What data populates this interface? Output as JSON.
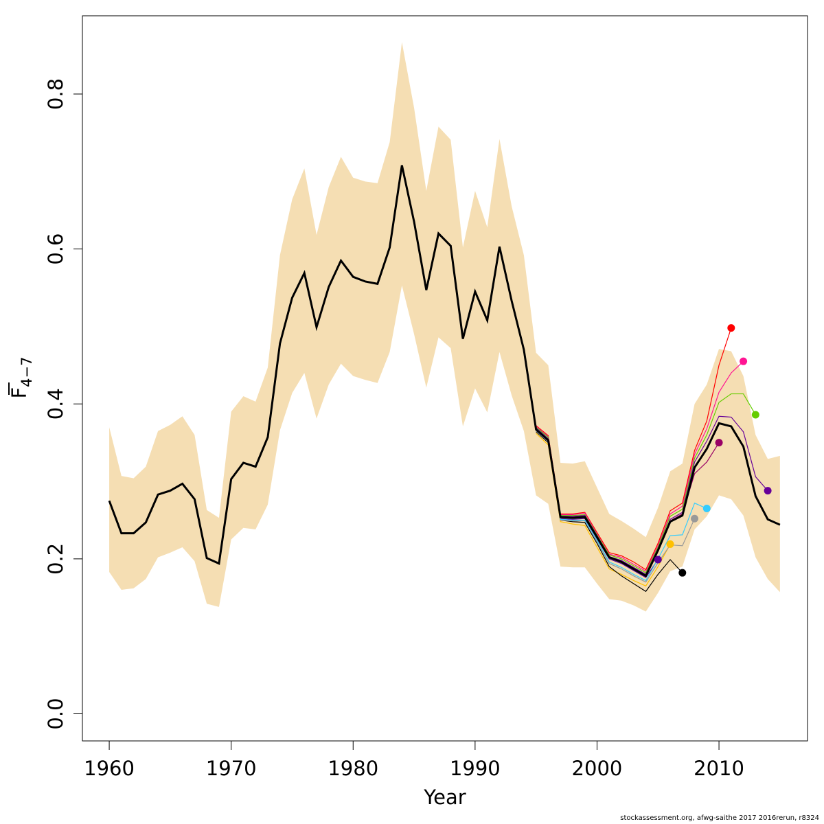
{
  "chart_data": {
    "type": "line",
    "xlabel": "Year",
    "ylabel_main": "F",
    "ylabel_sub": "4−7",
    "xlim": [
      1957.8,
      2017.26
    ],
    "ylim": [
      -0.035,
      0.901
    ],
    "xticks": [
      1960,
      1970,
      1980,
      1990,
      2000,
      2010
    ],
    "yticks": [
      0.0,
      0.2,
      0.4,
      0.6,
      0.8
    ],
    "ytick_labels": [
      "0.0",
      "0.2",
      "0.4",
      "0.6",
      "0.8"
    ],
    "grid": false,
    "band_color": "#F5DEB3",
    "main_color": "#000000",
    "years": [
      1960,
      1961,
      1962,
      1963,
      1964,
      1965,
      1966,
      1967,
      1968,
      1969,
      1970,
      1971,
      1972,
      1973,
      1974,
      1975,
      1976,
      1977,
      1978,
      1979,
      1980,
      1981,
      1982,
      1983,
      1984,
      1985,
      1986,
      1987,
      1988,
      1989,
      1990,
      1991,
      1992,
      1993,
      1994,
      1995,
      1996,
      1997,
      1998,
      1999,
      2000,
      2001,
      2002,
      2003,
      2004,
      2005,
      2006,
      2007,
      2008,
      2009,
      2010,
      2011,
      2012,
      2013,
      2014,
      2015
    ],
    "main": [
      0.275,
      0.233,
      0.233,
      0.247,
      0.283,
      0.288,
      0.297,
      0.277,
      0.201,
      0.194,
      0.303,
      0.324,
      0.319,
      0.357,
      0.478,
      0.537,
      0.569,
      0.499,
      0.551,
      0.585,
      0.564,
      0.558,
      0.555,
      0.602,
      0.708,
      0.635,
      0.547,
      0.62,
      0.604,
      0.484,
      0.545,
      0.508,
      0.603,
      0.533,
      0.47,
      0.367,
      0.353,
      0.254,
      0.253,
      0.254,
      0.228,
      0.202,
      0.196,
      0.187,
      0.178,
      0.211,
      0.248,
      0.256,
      0.318,
      0.342,
      0.375,
      0.371,
      0.345,
      0.281,
      0.251,
      0.244
    ],
    "upper": [
      0.37,
      0.307,
      0.304,
      0.319,
      0.365,
      0.373,
      0.384,
      0.36,
      0.263,
      0.253,
      0.39,
      0.41,
      0.403,
      0.447,
      0.592,
      0.664,
      0.704,
      0.618,
      0.68,
      0.719,
      0.692,
      0.687,
      0.685,
      0.738,
      0.867,
      0.782,
      0.675,
      0.758,
      0.741,
      0.602,
      0.675,
      0.628,
      0.742,
      0.655,
      0.592,
      0.466,
      0.45,
      0.324,
      0.323,
      0.326,
      0.292,
      0.258,
      0.249,
      0.239,
      0.228,
      0.266,
      0.313,
      0.323,
      0.4,
      0.425,
      0.471,
      0.468,
      0.436,
      0.36,
      0.329,
      0.333
    ],
    "lower": [
      0.183,
      0.16,
      0.162,
      0.174,
      0.202,
      0.208,
      0.215,
      0.197,
      0.142,
      0.138,
      0.225,
      0.24,
      0.238,
      0.27,
      0.366,
      0.414,
      0.44,
      0.381,
      0.425,
      0.452,
      0.436,
      0.431,
      0.427,
      0.467,
      0.553,
      0.49,
      0.421,
      0.486,
      0.472,
      0.371,
      0.42,
      0.389,
      0.467,
      0.411,
      0.365,
      0.282,
      0.271,
      0.19,
      0.189,
      0.189,
      0.168,
      0.148,
      0.146,
      0.14,
      0.132,
      0.156,
      0.184,
      0.19,
      0.238,
      0.255,
      0.282,
      0.277,
      0.256,
      0.202,
      0.174,
      0.157
    ],
    "retro": [
      {
        "color": "#5B0096",
        "x": [
          1995,
          1996,
          1997,
          1998,
          1999,
          2000,
          2001,
          2002,
          2003,
          2004,
          2005
        ],
        "y": [
          0.369,
          0.355,
          0.252,
          0.251,
          0.252,
          0.226,
          0.2,
          0.194,
          0.185,
          0.176,
          0.199
        ]
      },
      {
        "color": "#FFC000",
        "x": [
          1995,
          1996,
          1997,
          1998,
          1999,
          2000,
          2001,
          2002,
          2003,
          2004,
          2005,
          2006
        ],
        "y": [
          0.362,
          0.347,
          0.248,
          0.245,
          0.243,
          0.215,
          0.187,
          0.18,
          0.172,
          0.165,
          0.19,
          0.219
        ]
      },
      {
        "color": "#000000",
        "x": [
          1995,
          1996,
          1997,
          1998,
          1999,
          2000,
          2001,
          2002,
          2003,
          2004,
          2005,
          2006,
          2007
        ],
        "y": [
          0.364,
          0.35,
          0.25,
          0.248,
          0.247,
          0.22,
          0.19,
          0.178,
          0.168,
          0.158,
          0.18,
          0.199,
          0.182
        ]
      },
      {
        "color": "#999999",
        "x": [
          1995,
          1996,
          1997,
          1998,
          1999,
          2000,
          2001,
          2002,
          2003,
          2004,
          2005,
          2006,
          2007,
          2008
        ],
        "y": [
          0.365,
          0.351,
          0.25,
          0.249,
          0.249,
          0.222,
          0.194,
          0.187,
          0.178,
          0.17,
          0.195,
          0.218,
          0.217,
          0.252
        ]
      },
      {
        "color": "#33CCFF",
        "x": [
          1995,
          1996,
          1997,
          1998,
          1999,
          2000,
          2001,
          2002,
          2003,
          2004,
          2005,
          2006,
          2007,
          2008,
          2009
        ],
        "y": [
          0.366,
          0.352,
          0.251,
          0.25,
          0.25,
          0.224,
          0.196,
          0.189,
          0.18,
          0.172,
          0.2,
          0.23,
          0.231,
          0.272,
          0.265
        ]
      },
      {
        "color": "#990066",
        "x": [
          1995,
          1996,
          1997,
          1998,
          1999,
          2000,
          2001,
          2002,
          2003,
          2004,
          2005,
          2006,
          2007,
          2008,
          2009,
          2010
        ],
        "y": [
          0.368,
          0.354,
          0.254,
          0.254,
          0.255,
          0.228,
          0.202,
          0.197,
          0.188,
          0.179,
          0.212,
          0.249,
          0.258,
          0.31,
          0.325,
          0.35
        ]
      },
      {
        "color": "#FF0000",
        "x": [
          1995,
          1996,
          1997,
          1998,
          1999,
          2000,
          2001,
          2002,
          2003,
          2004,
          2005,
          2006,
          2007,
          2008,
          2009,
          2010,
          2011
        ],
        "y": [
          0.372,
          0.359,
          0.258,
          0.258,
          0.26,
          0.234,
          0.208,
          0.204,
          0.196,
          0.186,
          0.22,
          0.262,
          0.272,
          0.34,
          0.378,
          0.45,
          0.498
        ]
      },
      {
        "color": "#FF1493",
        "x": [
          1995,
          1996,
          1997,
          1998,
          1999,
          2000,
          2001,
          2002,
          2003,
          2004,
          2005,
          2006,
          2007,
          2008,
          2009,
          2010,
          2011,
          2012
        ],
        "y": [
          0.371,
          0.358,
          0.257,
          0.257,
          0.259,
          0.232,
          0.206,
          0.202,
          0.193,
          0.184,
          0.217,
          0.258,
          0.268,
          0.335,
          0.368,
          0.415,
          0.44,
          0.455
        ]
      },
      {
        "color": "#66CC00",
        "x": [
          1995,
          1996,
          1997,
          1998,
          1999,
          2000,
          2001,
          2002,
          2003,
          2004,
          2005,
          2006,
          2007,
          2008,
          2009,
          2010,
          2011,
          2012,
          2013
        ],
        "y": [
          0.37,
          0.357,
          0.256,
          0.256,
          0.257,
          0.231,
          0.205,
          0.2,
          0.191,
          0.182,
          0.215,
          0.255,
          0.264,
          0.33,
          0.36,
          0.402,
          0.413,
          0.413,
          0.386
        ]
      },
      {
        "color": "#660099",
        "x": [
          1995,
          1996,
          1997,
          1998,
          1999,
          2000,
          2001,
          2002,
          2003,
          2004,
          2005,
          2006,
          2007,
          2008,
          2009,
          2010,
          2011,
          2012,
          2013,
          2014
        ],
        "y": [
          0.369,
          0.355,
          0.255,
          0.255,
          0.256,
          0.23,
          0.203,
          0.198,
          0.189,
          0.18,
          0.213,
          0.251,
          0.26,
          0.325,
          0.352,
          0.384,
          0.383,
          0.364,
          0.306,
          0.288
        ]
      }
    ]
  },
  "footer": "stockassessment.org, afwg-saithe  2017  2016rerun, r8324"
}
